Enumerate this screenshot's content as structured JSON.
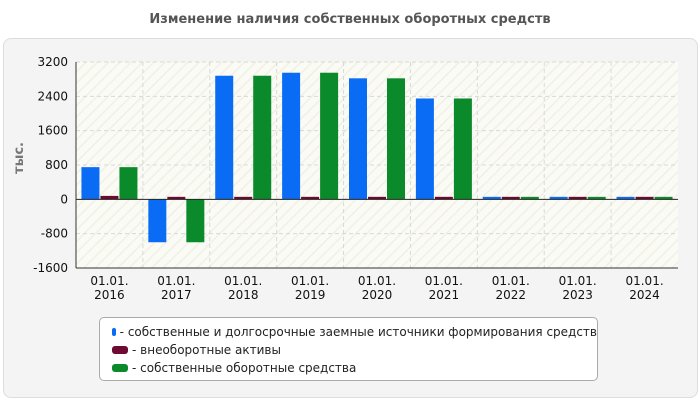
{
  "chart_data": {
    "type": "bar",
    "title": "Изменение наличия собственных оборотных средств",
    "ylabel": "тыс.",
    "xlabel": "",
    "ylim": [
      -1600,
      3200
    ],
    "yticks": [
      3200,
      2400,
      1600,
      800,
      0,
      -800,
      -1600
    ],
    "yticks_text": [
      "3200",
      "2400",
      "1600",
      "800",
      "0",
      "-800",
      "-1600"
    ],
    "categories": [
      [
        "01.01.",
        "2016"
      ],
      [
        "01.01.",
        "2017"
      ],
      [
        "01.01.",
        "2018"
      ],
      [
        "01.01.",
        "2019"
      ],
      [
        "01.01.",
        "2020"
      ],
      [
        "01.01.",
        "2021"
      ],
      [
        "01.01.",
        "2022"
      ],
      [
        "01.01.",
        "2023"
      ],
      [
        "01.01.",
        "2024"
      ]
    ],
    "series": [
      {
        "name": "- собственные и долгосрочные заемные источники формирования средств",
        "color": "#0a6cf5",
        "values": [
          750,
          -1000,
          2880,
          2950,
          2820,
          2350,
          30,
          30,
          30
        ]
      },
      {
        "name": "- внеоборотные активы",
        "color": "#6e0a32",
        "values": [
          80,
          20,
          20,
          20,
          20,
          20,
          20,
          20,
          20
        ]
      },
      {
        "name": "- собственные оборотные средства",
        "color": "#0a8a2a",
        "values": [
          750,
          -1000,
          2880,
          2950,
          2820,
          2350,
          30,
          30,
          30
        ]
      }
    ],
    "grid": true,
    "legend_position": "bottom"
  }
}
